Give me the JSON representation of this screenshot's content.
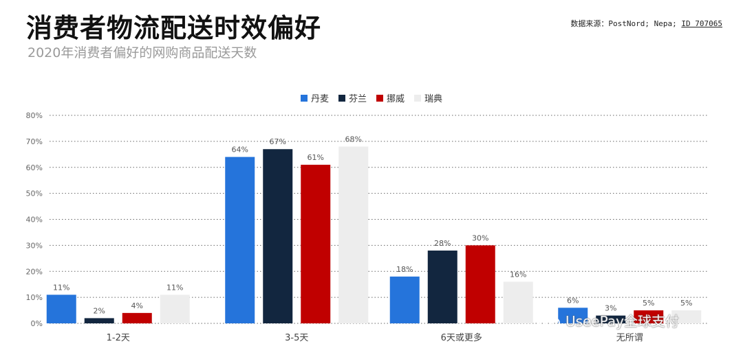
{
  "title": "消费者物流配送时效偏好",
  "subtitle": "2020年消费者偏好的网购商品配送天数",
  "source": {
    "prefix": "数据来源：PostNord; Nepa; ",
    "id_text": "ID 707065"
  },
  "watermark": {
    "text": "UseePay全球支付",
    "icon": "wechat-icon"
  },
  "chart_data": {
    "type": "bar",
    "categories": [
      "1-2天",
      "3-5天",
      "6天或更多",
      "无所谓"
    ],
    "series": [
      {
        "name": "丹麦",
        "color": "#2574db",
        "values": [
          11,
          64,
          18,
          6
        ]
      },
      {
        "name": "芬兰",
        "color": "#12263f",
        "values": [
          2,
          67,
          28,
          3
        ]
      },
      {
        "name": "挪威",
        "color": "#c00000",
        "values": [
          4,
          61,
          30,
          5
        ]
      },
      {
        "name": "瑞典",
        "color": "#ededed",
        "values": [
          11,
          68,
          16,
          5
        ]
      }
    ],
    "ylim": [
      0,
      80
    ],
    "yticks": [
      0,
      10,
      20,
      30,
      40,
      50,
      60,
      70,
      80
    ],
    "tick_suffix": "%",
    "value_suffix": "%",
    "grid": true,
    "legend_position": "top-center"
  }
}
